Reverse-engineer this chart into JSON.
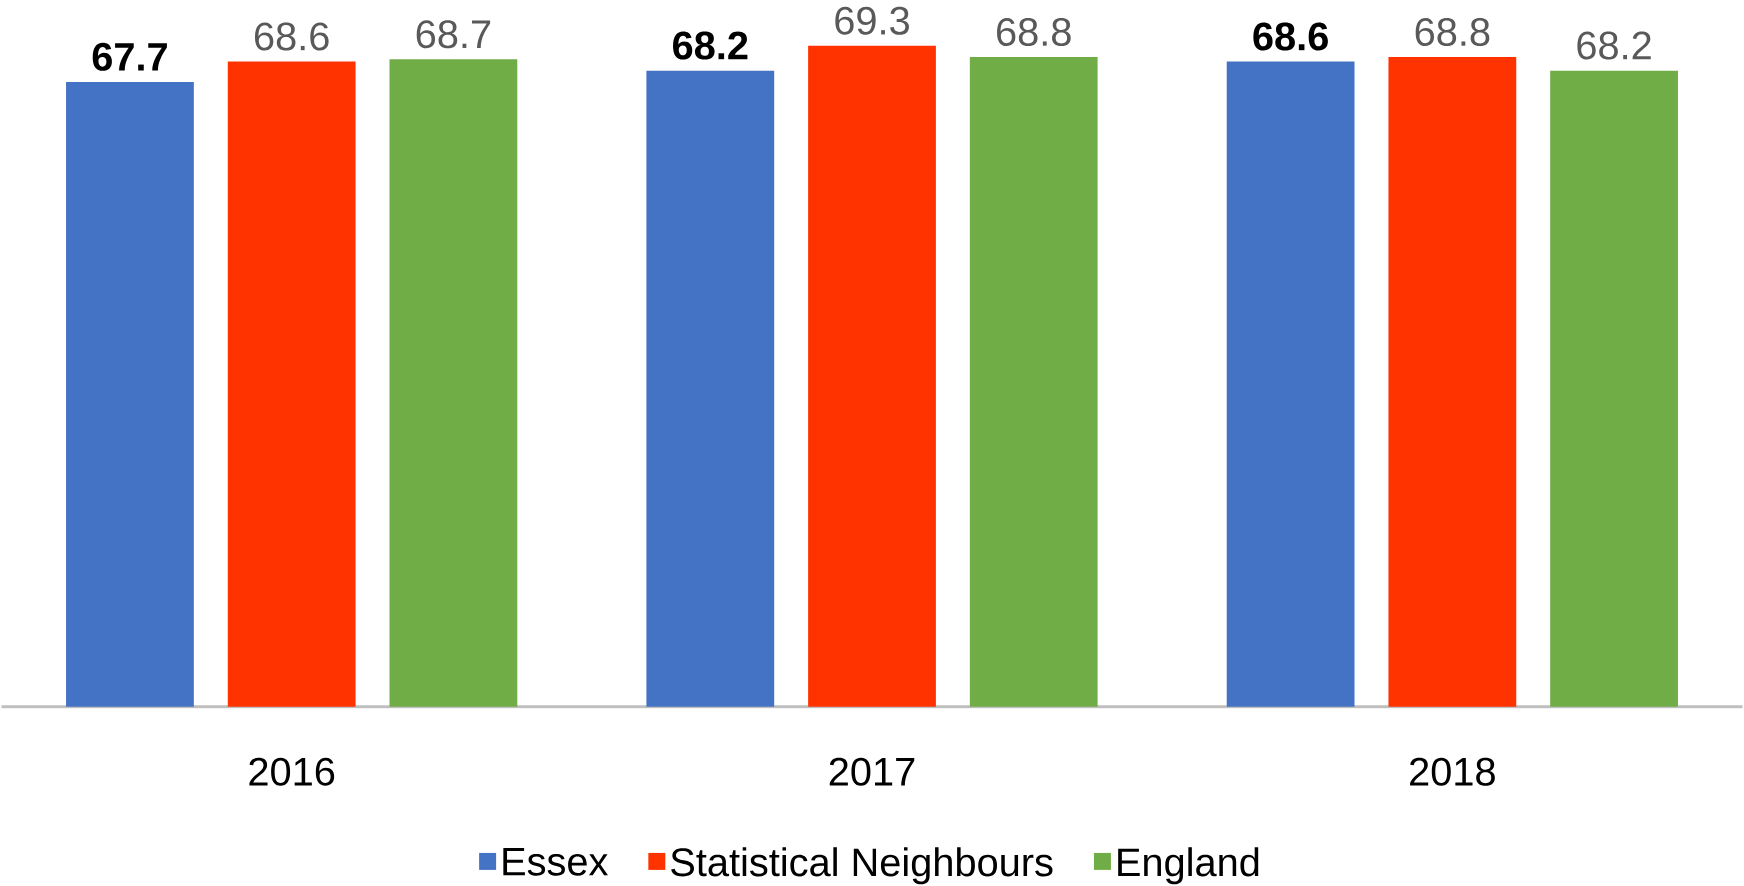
{
  "chart_data": {
    "type": "bar",
    "categories": [
      "2016",
      "2017",
      "2018"
    ],
    "series": [
      {
        "name": "Essex",
        "color": "#4472c4",
        "values": [
          67.7,
          68.2,
          68.6
        ],
        "value_labels": [
          "67.7",
          "68.2",
          "68.6"
        ]
      },
      {
        "name": "Statistical Neighbours",
        "color": "#ff3300",
        "values": [
          68.6,
          69.3,
          68.8
        ],
        "value_labels": [
          "68.6",
          "69.3",
          "68.8"
        ]
      },
      {
        "name": "England",
        "color": "#70ad47",
        "values": [
          68.7,
          68.8,
          68.2
        ],
        "value_labels": [
          "68.7",
          "68.8",
          "68.2"
        ]
      }
    ],
    "ylim": [
      40,
      69.3
    ],
    "tick_labels": "x",
    "grid": false,
    "legend": "bottom"
  }
}
